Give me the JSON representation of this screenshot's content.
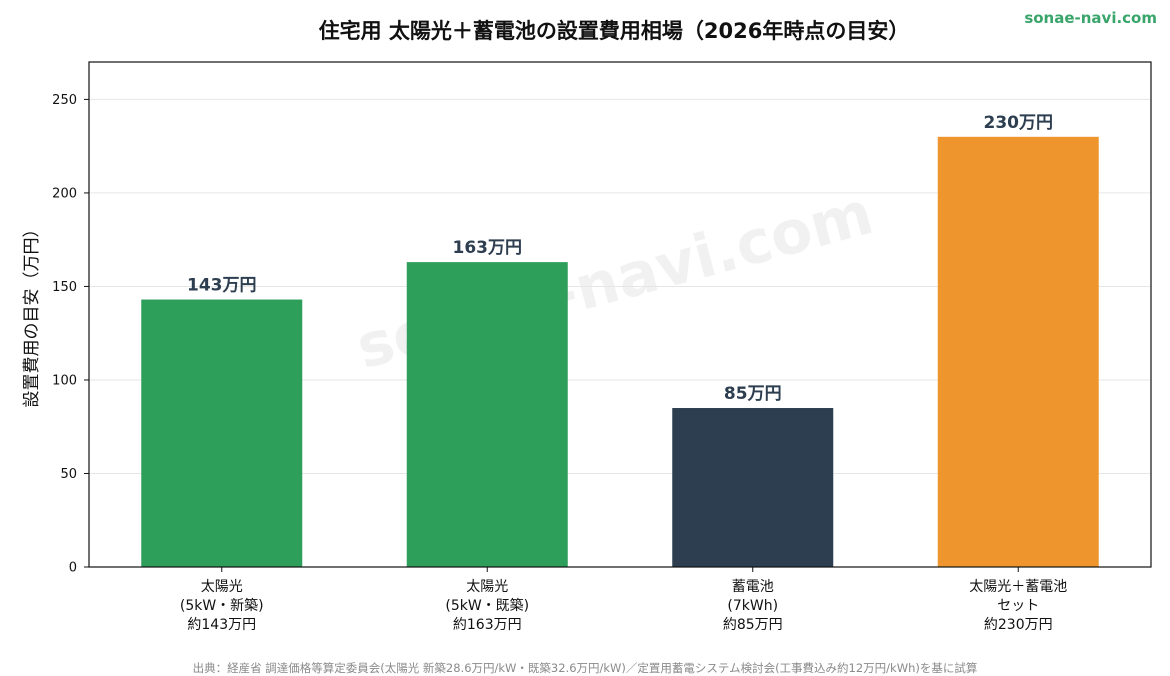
{
  "brand": "sonae-navi.com",
  "watermark": "sonae-navi.com",
  "source": "出典：経産省 調達価格等算定委員会(太陽光 新築28.6万円/kW・既築32.6万円/kW)／定置用蓄電システム検討会(工事費込み約12万円/kWh)を基に試算",
  "colors": {
    "green": "#2e9e5b",
    "navy": "#2d3e50",
    "orange": "#ef952e",
    "brand": "#3aa56b"
  },
  "chart_data": {
    "type": "bar",
    "title": "住宅用 太陽光＋蓄電池の設置費用相場（2026年時点の目安）",
    "xlabel": "",
    "ylabel": "設置費用の目安（万円）",
    "ylim": [
      0,
      270
    ],
    "yticks": [
      0,
      50,
      100,
      150,
      200,
      250
    ],
    "grid": true,
    "categories": [
      [
        "太陽光",
        "(5kW・新築)",
        "約143万円"
      ],
      [
        "太陽光",
        "(5kW・既築)",
        "約163万円"
      ],
      [
        "蓄電池",
        "(7kWh)",
        "約85万円"
      ],
      [
        "太陽光＋蓄電池",
        "セット",
        "約230万円"
      ]
    ],
    "values": [
      143,
      163,
      85,
      230
    ],
    "data_labels": [
      "143万円",
      "163万円",
      "85万円",
      "230万円"
    ],
    "bar_colors": [
      "#2e9e5b",
      "#2e9e5b",
      "#2d3e50",
      "#ef952e"
    ]
  }
}
